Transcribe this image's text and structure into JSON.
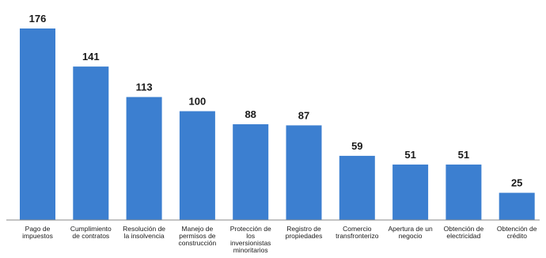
{
  "chart_data": {
    "type": "bar",
    "categories": [
      [
        "Pago de",
        "impuestos"
      ],
      [
        "Cumplimiento",
        "de contratos"
      ],
      [
        "Resolución de",
        "la insolvencia"
      ],
      [
        "Manejo de",
        "permisos de",
        "construcción"
      ],
      [
        "Protección de",
        "los",
        "inversionistas",
        "minoritarios"
      ],
      [
        "Registro de",
        "propiedades"
      ],
      [
        "Comercio",
        "transfronterizo"
      ],
      [
        "Apertura de un",
        "negocio"
      ],
      [
        "Obtención de",
        "electricidad"
      ],
      [
        "Obtención de",
        "crédito"
      ]
    ],
    "values": [
      176,
      141,
      113,
      100,
      88,
      87,
      59,
      51,
      51,
      25
    ],
    "ylim": [
      0,
      176
    ],
    "grid": false,
    "bar_color": "#3c7fd0",
    "axis_color": "#888888"
  }
}
